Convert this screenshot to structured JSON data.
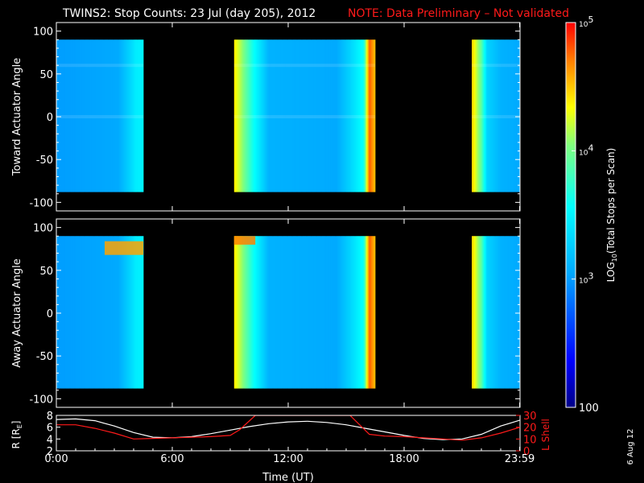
{
  "title": {
    "main": "TWINS2: Stop Counts: 23 Jul (day 205), 2012",
    "note": "NOTE: Data Preliminary – Not validated"
  },
  "date_stamp": "6 Aug 12",
  "colors": {
    "background": "#000000",
    "axes": "#ffffff",
    "note": "#ff1a1a",
    "lshell": "#ff1a1a",
    "radius": "#ffffff"
  },
  "colorbar": {
    "label": "LOG10(Total Stops per Scan)",
    "label_prefix": "LOG",
    "label_sub": "10",
    "label_suffix": "(Total Stops per Scan)",
    "ticks": [
      {
        "label": "100",
        "value": 100
      },
      {
        "label": "10^3",
        "value": 1000
      },
      {
        "label": "10^4",
        "value": 10000
      },
      {
        "label": "10^5",
        "value": 100000
      }
    ]
  },
  "chart_data": [
    {
      "type": "heatmap",
      "panel": "toward",
      "ylabel": "Toward Actuator Angle",
      "ylim": [
        -110,
        110
      ],
      "yticks": [
        100,
        50,
        0,
        -50,
        -100
      ],
      "xlim": [
        0,
        24
      ],
      "scale": "log",
      "zlim": [
        100,
        100000
      ],
      "angle_range": [
        -88,
        90
      ],
      "data_intervals_hours": [
        [
          0.0,
          4.5
        ],
        [
          9.2,
          16.5
        ],
        [
          21.5,
          24.0
        ]
      ],
      "column_profile_log10": [
        [
          0.0,
          3.0
        ],
        [
          3.2,
          3.05
        ],
        [
          3.8,
          3.3
        ],
        [
          4.1,
          3.45
        ],
        [
          4.5,
          3.5
        ],
        [
          9.2,
          4.4
        ],
        [
          9.6,
          4.1
        ],
        [
          10.2,
          3.6
        ],
        [
          11.0,
          3.1
        ],
        [
          14.5,
          3.05
        ],
        [
          15.2,
          3.3
        ],
        [
          15.9,
          3.6
        ],
        [
          16.2,
          4.8
        ],
        [
          16.5,
          4.5
        ],
        [
          21.5,
          4.5
        ],
        [
          22.0,
          3.9
        ],
        [
          22.3,
          3.3
        ],
        [
          23.0,
          3.1
        ],
        [
          24.0,
          3.05
        ]
      ],
      "features": [
        {
          "angle": 60,
          "label": "faint bright band"
        },
        {
          "angle": 0,
          "label": "faint bright band"
        }
      ]
    },
    {
      "type": "heatmap",
      "panel": "away",
      "ylabel": "Away Actuator Angle",
      "ylim": [
        -110,
        110
      ],
      "yticks": [
        100,
        50,
        0,
        -50,
        -100
      ],
      "xlim": [
        0,
        24
      ],
      "scale": "log",
      "zlim": [
        100,
        100000
      ],
      "angle_range": [
        -88,
        90
      ],
      "data_intervals_hours": [
        [
          0.0,
          4.5
        ],
        [
          9.2,
          16.5
        ],
        [
          21.5,
          24.0
        ]
      ],
      "column_profile_log10": [
        [
          0.0,
          3.0
        ],
        [
          3.2,
          3.05
        ],
        [
          3.8,
          3.3
        ],
        [
          4.1,
          3.45
        ],
        [
          4.5,
          3.5
        ],
        [
          9.2,
          4.4
        ],
        [
          9.6,
          4.1
        ],
        [
          10.2,
          3.6
        ],
        [
          11.0,
          3.1
        ],
        [
          14.5,
          3.05
        ],
        [
          15.2,
          3.3
        ],
        [
          15.9,
          3.6
        ],
        [
          16.2,
          4.8
        ],
        [
          16.5,
          4.5
        ],
        [
          21.5,
          4.5
        ],
        [
          22.0,
          3.9
        ],
        [
          22.3,
          3.3
        ],
        [
          23.0,
          3.1
        ],
        [
          24.0,
          3.05
        ]
      ],
      "features": [
        {
          "time_range": [
            2.5,
            4.5
          ],
          "angle_range": [
            68,
            84
          ],
          "level_log10": 4.6,
          "label": "high counts near 75 deg"
        },
        {
          "time_range": [
            9.2,
            10.3
          ],
          "angle_range": [
            80,
            90
          ],
          "level_log10": 4.7,
          "label": "high counts near 85 deg"
        }
      ]
    },
    {
      "type": "line",
      "panel": "orbit",
      "xlabel": "Time (UT)",
      "xlim": [
        0,
        24
      ],
      "xticks": [
        {
          "label": "0:00",
          "value": 0
        },
        {
          "label": "6:00",
          "value": 6
        },
        {
          "label": "12:00",
          "value": 12
        },
        {
          "label": "18:00",
          "value": 18
        },
        {
          "label": "23:59",
          "value": 23.98
        }
      ],
      "left_axis": {
        "label": "R [Re]",
        "label_main": "R [R",
        "label_sub": "E",
        "label_end": "]",
        "ylim": [
          2,
          8
        ],
        "ticks": [
          8,
          6,
          4,
          2
        ]
      },
      "right_axis": {
        "label": "L Shell",
        "ylim": [
          0,
          30
        ],
        "ticks": [
          30,
          20,
          10,
          0
        ]
      },
      "series": [
        {
          "name": "R [Re]",
          "axis": "left",
          "x": [
            0,
            1,
            2,
            3,
            4,
            5,
            6,
            7,
            8,
            9,
            10,
            11,
            12,
            13,
            14,
            15,
            16,
            17,
            18,
            19,
            20,
            21,
            22,
            23,
            24
          ],
          "values": [
            7.3,
            7.4,
            7.1,
            6.2,
            5.1,
            4.3,
            4.2,
            4.4,
            4.9,
            5.5,
            6.1,
            6.6,
            6.9,
            7.0,
            6.8,
            6.4,
            5.8,
            5.2,
            4.6,
            4.1,
            3.9,
            4.0,
            4.8,
            6.2,
            7.2
          ]
        },
        {
          "name": "L Shell",
          "axis": "right",
          "x": [
            0,
            1,
            2,
            3,
            4,
            5,
            6,
            7,
            8,
            9,
            9.5,
            10.3,
            15.2,
            16.2,
            17,
            18,
            19,
            20,
            21,
            22,
            23,
            24
          ],
          "values": [
            22,
            22,
            19,
            15,
            10,
            10.5,
            11,
            11.5,
            12,
            13,
            18,
            30,
            30,
            14,
            12.5,
            12,
            11,
            10,
            9,
            11,
            15,
            20
          ]
        }
      ]
    }
  ]
}
